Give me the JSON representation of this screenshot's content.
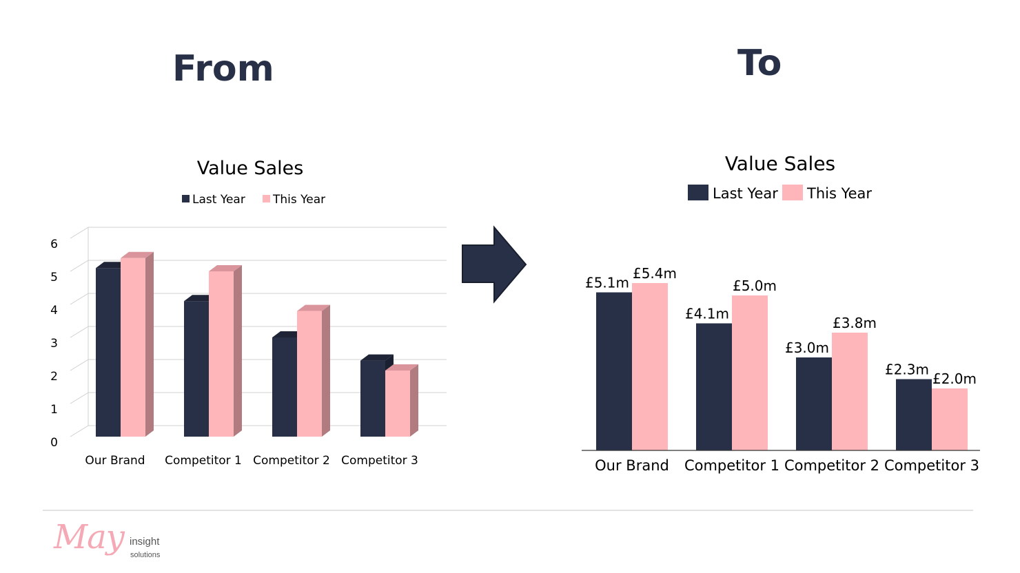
{
  "headings": {
    "from": "From",
    "to": "To"
  },
  "logo": {
    "script": "May",
    "word1": "insight",
    "word2": "solutions"
  },
  "colors": {
    "last_year": "#283047",
    "this_year": "#ffb6ba",
    "heading": "#283047",
    "arrow": "#283047"
  },
  "arrow_icon": "right-arrow-icon",
  "chart_data": [
    {
      "type": "bar",
      "style": "3d-clustered-column",
      "title": "Value Sales",
      "categories": [
        "Our Brand",
        "Competitor 1",
        "Competitor 2",
        "Competitor 3"
      ],
      "series": [
        {
          "name": "Last Year",
          "values": [
            5.1,
            4.1,
            3.0,
            2.3
          ]
        },
        {
          "name": "This Year",
          "values": [
            5.4,
            5.0,
            3.8,
            2.0
          ]
        }
      ],
      "ylim": [
        0,
        6
      ],
      "yticks": [
        0,
        1,
        2,
        3,
        4,
        5,
        6
      ],
      "grid": true,
      "legend": "top"
    },
    {
      "type": "bar",
      "style": "clustered-column",
      "title": "Value Sales",
      "categories": [
        "Our Brand",
        "Competitor 1",
        "Competitor 2",
        "Competitor 3"
      ],
      "series": [
        {
          "name": "Last Year",
          "values": [
            5.1,
            4.1,
            3.0,
            2.3
          ],
          "labels": [
            "£5.1m",
            "£4.1m",
            "£3.0m",
            "£2.3m"
          ]
        },
        {
          "name": "This Year",
          "values": [
            5.4,
            5.0,
            3.8,
            2.0
          ],
          "labels": [
            "£5.4m",
            "£5.0m",
            "£3.8m",
            "£2.0m"
          ]
        }
      ],
      "ylim": [
        0,
        6
      ],
      "grid": false,
      "legend": "top"
    }
  ]
}
